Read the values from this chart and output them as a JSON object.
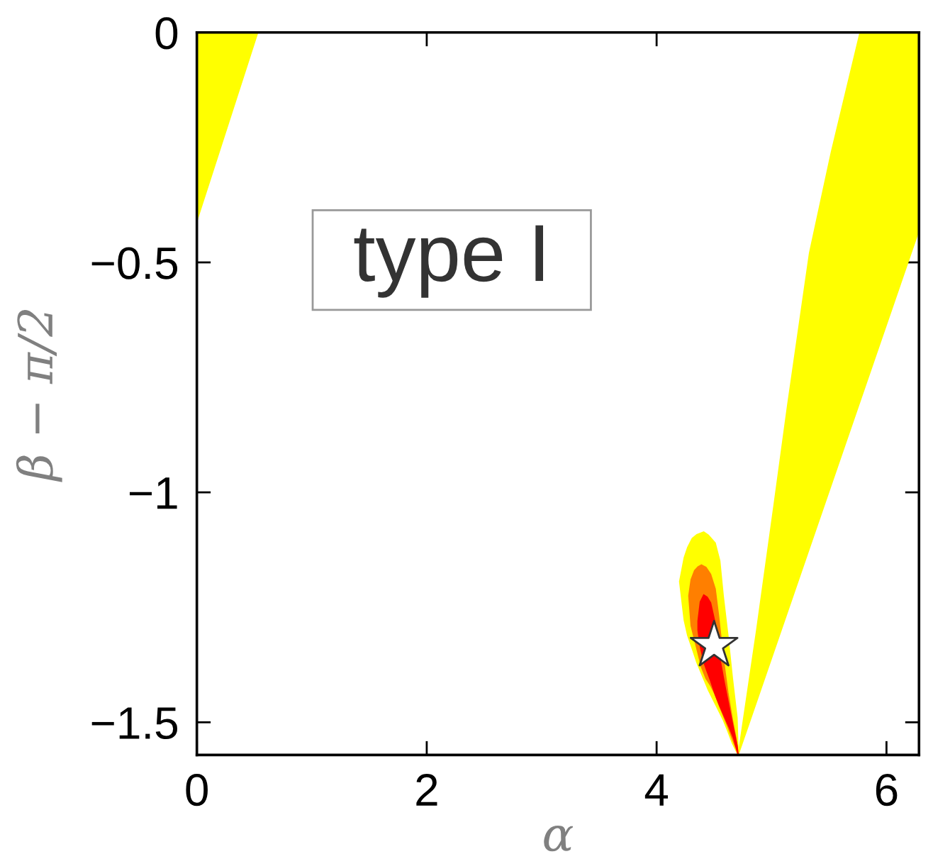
{
  "chart_data": {
    "type": "area",
    "xlabel": "α",
    "ylabel": "β − π/2",
    "xlim": [
      0,
      6.283
    ],
    "ylim": [
      -1.571,
      0
    ],
    "xticks": [
      0,
      2,
      4,
      6
    ],
    "yticks": [
      {
        "value": -1.5,
        "label": "−1.5"
      },
      {
        "value": -1,
        "label": "−1"
      },
      {
        "value": -0.5,
        "label": "−0.5"
      },
      0
    ],
    "annotations": [
      "type I"
    ],
    "series": [
      {
        "color": "#ffff00",
        "x": [
          0,
          0.53,
          0
        ],
        "values": [
          0,
          0,
          -0.41
        ]
      },
      {
        "color": "#ffff00",
        "x": [
          4.71,
          4.87,
          5.02,
          5.14,
          5.33,
          5.52,
          5.77,
          6.283,
          6.283
        ],
        "values": [
          -1.571,
          -1.3,
          -1.03,
          -0.81,
          -0.48,
          -0.26,
          0,
          0,
          -0.43
        ]
      },
      {
        "color": "#ffff00",
        "x": [
          4.2,
          4.24,
          4.27,
          4.31,
          4.35,
          4.41,
          4.45,
          4.51,
          4.55,
          4.58,
          4.62,
          4.66,
          4.7,
          4.71,
          4.7,
          4.66,
          4.62,
          4.58,
          4.55,
          4.51,
          4.45,
          4.41,
          4.35,
          4.31,
          4.27,
          4.24
        ],
        "values": [
          -1.194,
          -1.142,
          -1.12,
          -1.1,
          -1.092,
          -1.086,
          -1.093,
          -1.11,
          -1.149,
          -1.225,
          -1.31,
          -1.405,
          -1.49,
          -1.571,
          -1.566,
          -1.546,
          -1.52,
          -1.495,
          -1.48,
          -1.46,
          -1.43,
          -1.406,
          -1.37,
          -1.34,
          -1.311,
          -1.278
        ]
      },
      {
        "color": "#ff7f00",
        "x": [
          4.28,
          4.3,
          4.33,
          4.36,
          4.39,
          4.43,
          4.47,
          4.51,
          4.54,
          4.58,
          4.62,
          4.66,
          4.69,
          4.71,
          4.69,
          4.66,
          4.62,
          4.58,
          4.54,
          4.51,
          4.47,
          4.43,
          4.39,
          4.36,
          4.33,
          4.3
        ],
        "values": [
          -1.225,
          -1.19,
          -1.17,
          -1.162,
          -1.158,
          -1.163,
          -1.178,
          -1.21,
          -1.27,
          -1.36,
          -1.435,
          -1.495,
          -1.534,
          -1.571,
          -1.556,
          -1.537,
          -1.51,
          -1.485,
          -1.46,
          -1.44,
          -1.42,
          -1.405,
          -1.38,
          -1.35,
          -1.32,
          -1.29
        ]
      },
      {
        "color": "#ff0000",
        "x": [
          4.36,
          4.38,
          4.41,
          4.44,
          4.47,
          4.51,
          4.55,
          4.59,
          4.63,
          4.67,
          4.7,
          4.71,
          4.7,
          4.67,
          4.63,
          4.59,
          4.55,
          4.51,
          4.47,
          4.44,
          4.41,
          4.38,
          4.36
        ],
        "values": [
          -1.28,
          -1.238,
          -1.223,
          -1.228,
          -1.24,
          -1.285,
          -1.36,
          -1.415,
          -1.465,
          -1.515,
          -1.55,
          -1.571,
          -1.562,
          -1.535,
          -1.51,
          -1.488,
          -1.465,
          -1.44,
          -1.41,
          -1.39,
          -1.369,
          -1.335,
          -1.3
        ]
      },
      {
        "type": "scatter",
        "color": "#ffffff",
        "marker": "star",
        "x": [
          4.5
        ],
        "values": [
          -1.333
        ]
      }
    ]
  }
}
